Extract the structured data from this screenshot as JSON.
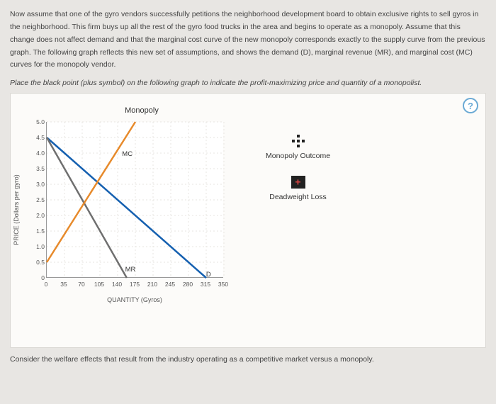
{
  "intro": "Now assume that one of the gyro vendors successfully petitions the neighborhood development board to obtain exclusive rights to sell gyros in the neighborhood. This firm buys up all the rest of the gyro food trucks in the area and begins to operate as a monopoly. Assume that this change does not affect demand and that the marginal cost curve of the new monopoly corresponds exactly to the supply curve from the previous graph. The following graph reflects this new set of assumptions, and shows the demand (D), marginal revenue (MR), and marginal cost (MC) curves for the monopoly vendor.",
  "instruction": "Place the black point (plus symbol) on the following graph to indicate the profit-maximizing price and quantity of a monopolist.",
  "help": "?",
  "chart": {
    "title": "Monopoly",
    "ylabel": "PRICE (Dollars per gyro)",
    "xlabel": "QUANTITY (Gyros)",
    "ylim": [
      0,
      5.0
    ],
    "xlim": [
      0,
      350
    ],
    "yticks": [
      "0",
      "0.5",
      "1.0",
      "1.5",
      "2.0",
      "2.5",
      "3.0",
      "3.5",
      "4.0",
      "4.5",
      "5.0"
    ],
    "xticks": [
      "0",
      "35",
      "70",
      "105",
      "140",
      "175",
      "210",
      "245",
      "280",
      "315",
      "350"
    ],
    "lines": {
      "demand": {
        "x1": 0,
        "y1": 4.5,
        "x2": 315,
        "y2": 0,
        "color": "#1560b0",
        "label": "D",
        "lx": 312,
        "ly": 0.1
      },
      "mr": {
        "x1": 0,
        "y1": 4.5,
        "x2": 158,
        "y2": 0,
        "color": "#6f6f6f",
        "label": "MR",
        "lx": 152,
        "ly": 0.25
      },
      "mc": {
        "x1": 0,
        "y1": 0.5,
        "x2": 175,
        "y2": 5.0,
        "color": "#e78a2b",
        "label": "MC",
        "lx": 146,
        "ly": 3.95
      }
    },
    "grid_color": "#e7e5e1",
    "background": "#ffffff",
    "axis_font": 8.5,
    "label_font": 9
  },
  "legend": {
    "outcome": "Monopoly Outcome",
    "dwl": "Deadweight Loss"
  },
  "footer": "Consider the welfare effects that result from the industry operating as a competitive market versus a monopoly."
}
